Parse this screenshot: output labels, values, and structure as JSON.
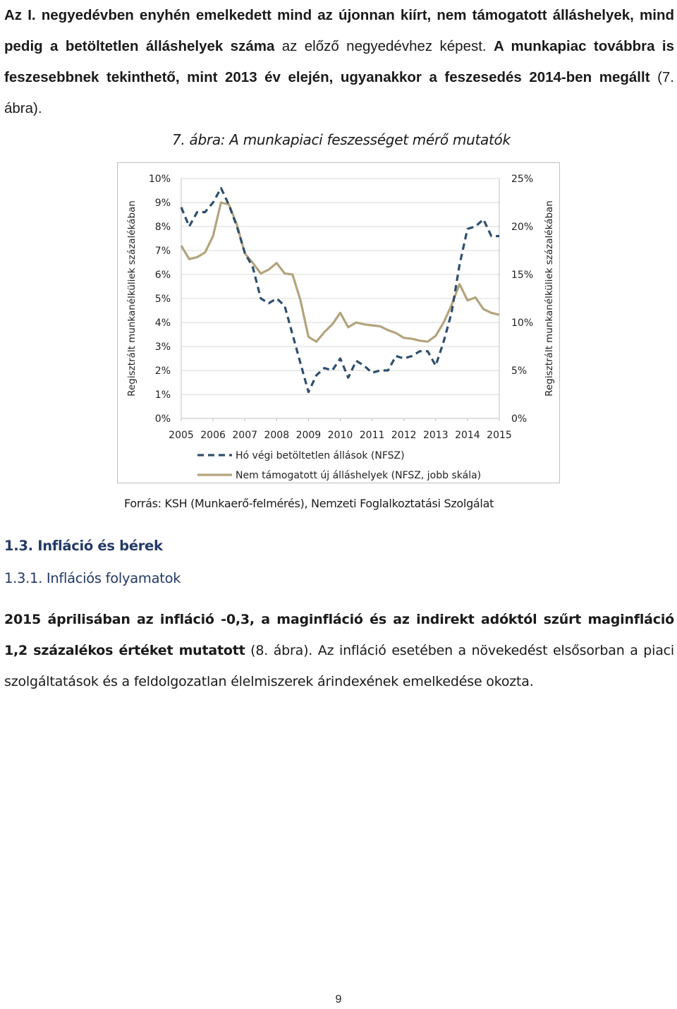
{
  "intro": {
    "b1": "Az I. negyedévben enyhén emelkedett mind az újonnan kiírt, nem támogatott álláshelyek, mind pedig a betöltetlen álláshelyek száma",
    "t1": " az előző negyedévhez képest. ",
    "b2": "A munkapiac továbbra is feszesebbnek tekinthető, mint 2013 év elején, ugyanakkor a feszesedés 2014-ben megállt",
    "t2": " (7. ábra)."
  },
  "figure": {
    "caption": "7. ábra: A munkapiaci feszességet mérő mutatók",
    "source": "Forrás: KSH (Munkaerő-felmérés), Nemzeti Foglalkoztatási Szolgálat"
  },
  "chart_data": {
    "type": "line",
    "ylabel_left": "Regisztrált munkanélküliek százalékában",
    "ylabel_right": "Regisztrált munkanélküliek százalékában",
    "x_ticks": [
      "2005",
      "2006",
      "2007",
      "2008",
      "2009",
      "2010",
      "2011",
      "2012",
      "2013",
      "2014",
      "2015"
    ],
    "y_left_ticks": [
      "0%",
      "1%",
      "2%",
      "3%",
      "4%",
      "5%",
      "6%",
      "7%",
      "8%",
      "9%",
      "10%"
    ],
    "y_right_ticks": [
      "0%",
      "5%",
      "10%",
      "15%",
      "20%",
      "25%"
    ],
    "ylim_left": [
      0,
      10
    ],
    "ylim_right": [
      0,
      25
    ],
    "grid": true,
    "legend_position": "bottom",
    "series": [
      {
        "name": "Hó végi betöltetlen állások (NFSZ)",
        "axis": "left",
        "style": "dashed",
        "color": "#2e4f6e",
        "x": [
          2005.0,
          2005.25,
          2005.5,
          2005.75,
          2006.0,
          2006.25,
          2006.5,
          2006.75,
          2007.0,
          2007.25,
          2007.5,
          2007.75,
          2008.0,
          2008.25,
          2008.5,
          2008.75,
          2009.0,
          2009.25,
          2009.5,
          2009.75,
          2010.0,
          2010.25,
          2010.5,
          2010.75,
          2011.0,
          2011.25,
          2011.5,
          2011.75,
          2012.0,
          2012.25,
          2012.5,
          2012.75,
          2013.0,
          2013.25,
          2013.5,
          2013.75,
          2014.0,
          2014.25,
          2014.5,
          2014.75,
          2015.0
        ],
        "values": [
          8.8,
          8.0,
          8.6,
          8.6,
          9.0,
          9.6,
          8.9,
          8.0,
          6.9,
          6.3,
          5.0,
          4.8,
          5.0,
          4.7,
          3.5,
          2.3,
          1.1,
          1.8,
          2.1,
          2.0,
          2.5,
          1.7,
          2.4,
          2.2,
          1.9,
          2.0,
          2.0,
          2.6,
          2.5,
          2.6,
          2.8,
          2.8,
          2.2,
          3.2,
          4.4,
          6.4,
          7.9,
          8.0,
          8.3,
          7.6,
          7.6
        ]
      },
      {
        "name": "Nem támogatott új álláshelyek (NFSZ, jobb skála)",
        "axis": "right",
        "style": "solid",
        "color": "#b2a47c",
        "x": [
          2005.0,
          2005.25,
          2005.5,
          2005.75,
          2006.0,
          2006.25,
          2006.5,
          2006.75,
          2007.0,
          2007.25,
          2007.5,
          2007.75,
          2008.0,
          2008.25,
          2008.5,
          2008.75,
          2009.0,
          2009.25,
          2009.5,
          2009.75,
          2010.0,
          2010.25,
          2010.5,
          2010.75,
          2011.0,
          2011.25,
          2011.5,
          2011.75,
          2012.0,
          2012.25,
          2012.5,
          2012.75,
          2013.0,
          2013.25,
          2013.5,
          2013.75,
          2014.0,
          2014.25,
          2014.5,
          2014.75,
          2015.0
        ],
        "values": [
          18.0,
          16.6,
          16.8,
          17.3,
          19.0,
          22.5,
          22.3,
          20.2,
          17.2,
          16.2,
          15.1,
          15.5,
          16.2,
          15.1,
          15.0,
          12.3,
          8.5,
          8.0,
          9.0,
          9.8,
          11.0,
          9.5,
          10.0,
          9.8,
          9.7,
          9.6,
          9.2,
          8.9,
          8.4,
          8.3,
          8.1,
          8.0,
          8.6,
          10.0,
          11.8,
          14.0,
          12.3,
          12.6,
          11.4,
          11.0,
          10.8
        ]
      }
    ]
  },
  "section": {
    "h2": "1.3. Infláció és bérek",
    "h3": "1.3.1. Inflációs folyamatok"
  },
  "para2": {
    "b1": "2015 áprilisában az infláció -0,3, a maginfláció és az indirekt adóktól szűrt maginfláció 1,2 százalékos értéket mutatott",
    "t1": " (8. ábra). Az infláció esetében a növekedést elsősorban a piaci szolgáltatások és a feldolgozatlan élelmiszerek árindexének emelkedése okozta."
  },
  "page": {
    "number": "9"
  }
}
